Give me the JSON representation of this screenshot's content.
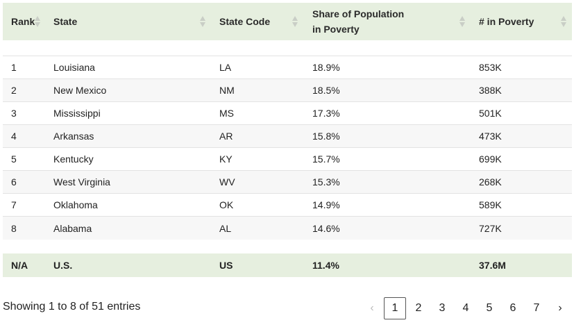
{
  "columns": [
    {
      "label": "Rank"
    },
    {
      "label": "State"
    },
    {
      "label": "State Code"
    },
    {
      "label_line1": "Share of Population",
      "label_line2": "in Poverty"
    },
    {
      "label": "# in Poverty"
    }
  ],
  "rows": [
    {
      "rank": "1",
      "state": "Louisiana",
      "code": "LA",
      "share": "18.9%",
      "poverty": "853K"
    },
    {
      "rank": "2",
      "state": "New Mexico",
      "code": "NM",
      "share": "18.5%",
      "poverty": "388K"
    },
    {
      "rank": "3",
      "state": "Mississippi",
      "code": "MS",
      "share": "17.3%",
      "poverty": "501K"
    },
    {
      "rank": "4",
      "state": "Arkansas",
      "code": "AR",
      "share": "15.8%",
      "poverty": "473K"
    },
    {
      "rank": "5",
      "state": "Kentucky",
      "code": "KY",
      "share": "15.7%",
      "poverty": "699K"
    },
    {
      "rank": "6",
      "state": "West Virginia",
      "code": "WV",
      "share": "15.3%",
      "poverty": "268K"
    },
    {
      "rank": "7",
      "state": "Oklahoma",
      "code": "OK",
      "share": "14.9%",
      "poverty": "589K"
    },
    {
      "rank": "8",
      "state": "Alabama",
      "code": "AL",
      "share": "14.6%",
      "poverty": "727K"
    }
  ],
  "footer": {
    "rank": "N/A",
    "state": "U.S.",
    "code": "US",
    "share": "11.4%",
    "poverty": "37.6M"
  },
  "info": "Showing 1 to 8 of 51 entries",
  "pagination": {
    "prev": "‹",
    "next": "›",
    "pages": [
      "1",
      "2",
      "3",
      "4",
      "5",
      "6",
      "7"
    ],
    "current": "1"
  },
  "colors": {
    "header_bg": "#e6efdf",
    "alt_row_bg": "#f7f7f7"
  }
}
